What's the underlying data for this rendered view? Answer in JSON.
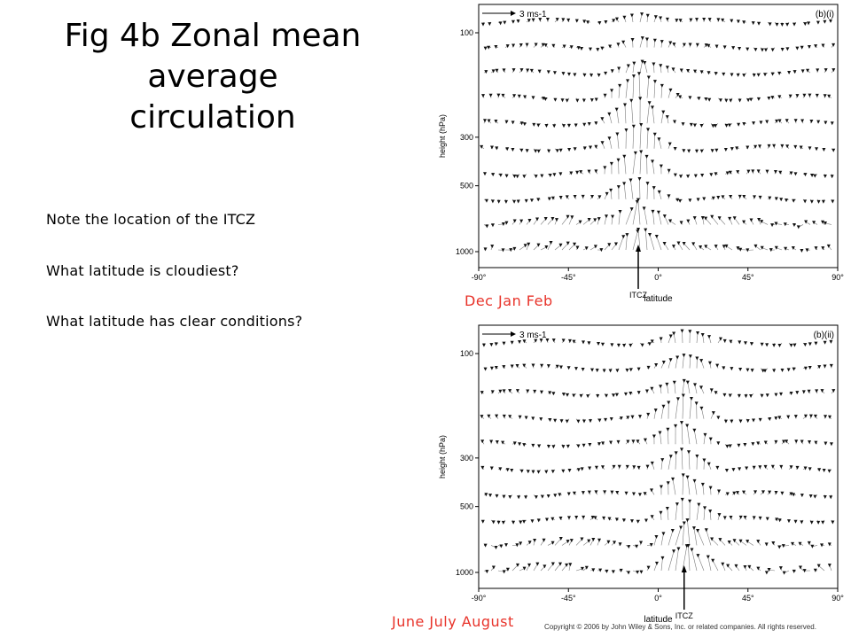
{
  "title_line1": "Fig 4b Zonal mean average",
  "title_line2": "circulation",
  "notes": [
    "Note the location of the ITCZ",
    "What latitude is cloudiest?",
    "What latitude has clear conditions?"
  ],
  "seasons": {
    "top": "Dec Jan Feb",
    "bottom": "June July August"
  },
  "copyright": "Copyright © 2006 by John Wiley & Sons, Inc. or related companies. All rights reserved.",
  "colors": {
    "season_label": "#e8332a",
    "vector": "#7a7a7a",
    "arrowhead": "#111111"
  },
  "chart_data": [
    {
      "type": "vector-field",
      "panel_label": "(b)(i)",
      "scale_label": "3 ms-1",
      "ylabel": "height (hPa)",
      "xlabel": "latitude",
      "x_ticks": [
        "-90°",
        "-45°",
        "0°",
        "45°",
        "90°"
      ],
      "y_ticks": [
        "100",
        "300",
        "500",
        "1000"
      ],
      "xlim": [
        -90,
        90
      ],
      "ylim": [
        1000,
        100
      ],
      "y_scale": "log",
      "itcz_label": "ITCZ",
      "itcz_lat": -10
    },
    {
      "type": "vector-field",
      "panel_label": "(b)(ii)",
      "scale_label": "3 ms-1",
      "ylabel": "height (hPa)",
      "xlabel": "latitude",
      "x_ticks": [
        "-90°",
        "-45°",
        "0°",
        "45°",
        "90°"
      ],
      "y_ticks": [
        "100",
        "300",
        "500",
        "1000"
      ],
      "xlim": [
        -90,
        90
      ],
      "ylim": [
        1000,
        100
      ],
      "y_scale": "log",
      "itcz_label": "ITCZ",
      "itcz_lat": 13
    }
  ]
}
